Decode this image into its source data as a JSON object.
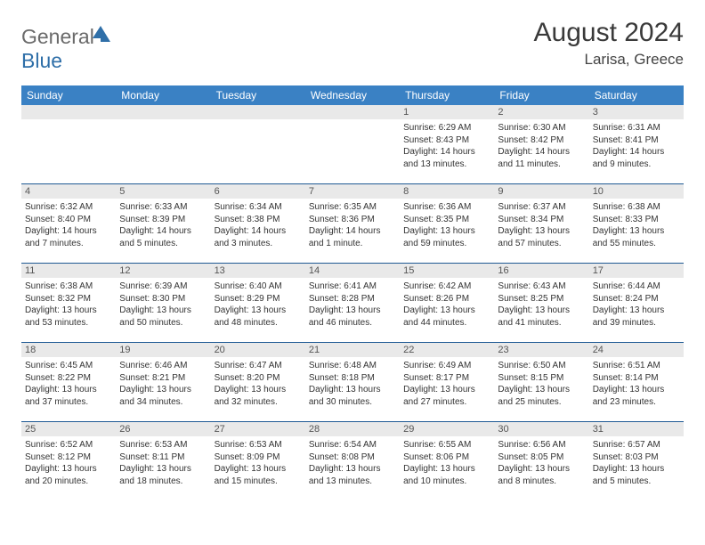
{
  "branding": {
    "logo_general": "General",
    "logo_blue": "Blue"
  },
  "header": {
    "title": "August 2024",
    "location": "Larisa, Greece"
  },
  "dayNames": [
    "Sunday",
    "Monday",
    "Tuesday",
    "Wednesday",
    "Thursday",
    "Friday",
    "Saturday"
  ],
  "styling": {
    "header_bg": "#3a81c4",
    "header_text": "#ffffff",
    "week_divider": "#1f5a94",
    "daynum_bg": "#e9e9e9",
    "page_bg": "#ffffff",
    "title_fontsize": 30,
    "location_fontsize": 17,
    "dayheader_fontsize": 12,
    "daynum_fontsize": 11,
    "cell_fontsize": 10
  },
  "weeks": [
    [
      {
        "empty": true
      },
      {
        "empty": true
      },
      {
        "empty": true
      },
      {
        "empty": true
      },
      {
        "num": "1",
        "sunrise": "6:29 AM",
        "sunset": "8:43 PM",
        "daylight": "14 hours and 13 minutes."
      },
      {
        "num": "2",
        "sunrise": "6:30 AM",
        "sunset": "8:42 PM",
        "daylight": "14 hours and 11 minutes."
      },
      {
        "num": "3",
        "sunrise": "6:31 AM",
        "sunset": "8:41 PM",
        "daylight": "14 hours and 9 minutes."
      }
    ],
    [
      {
        "num": "4",
        "sunrise": "6:32 AM",
        "sunset": "8:40 PM",
        "daylight": "14 hours and 7 minutes."
      },
      {
        "num": "5",
        "sunrise": "6:33 AM",
        "sunset": "8:39 PM",
        "daylight": "14 hours and 5 minutes."
      },
      {
        "num": "6",
        "sunrise": "6:34 AM",
        "sunset": "8:38 PM",
        "daylight": "14 hours and 3 minutes."
      },
      {
        "num": "7",
        "sunrise": "6:35 AM",
        "sunset": "8:36 PM",
        "daylight": "14 hours and 1 minute."
      },
      {
        "num": "8",
        "sunrise": "6:36 AM",
        "sunset": "8:35 PM",
        "daylight": "13 hours and 59 minutes."
      },
      {
        "num": "9",
        "sunrise": "6:37 AM",
        "sunset": "8:34 PM",
        "daylight": "13 hours and 57 minutes."
      },
      {
        "num": "10",
        "sunrise": "6:38 AM",
        "sunset": "8:33 PM",
        "daylight": "13 hours and 55 minutes."
      }
    ],
    [
      {
        "num": "11",
        "sunrise": "6:38 AM",
        "sunset": "8:32 PM",
        "daylight": "13 hours and 53 minutes."
      },
      {
        "num": "12",
        "sunrise": "6:39 AM",
        "sunset": "8:30 PM",
        "daylight": "13 hours and 50 minutes."
      },
      {
        "num": "13",
        "sunrise": "6:40 AM",
        "sunset": "8:29 PM",
        "daylight": "13 hours and 48 minutes."
      },
      {
        "num": "14",
        "sunrise": "6:41 AM",
        "sunset": "8:28 PM",
        "daylight": "13 hours and 46 minutes."
      },
      {
        "num": "15",
        "sunrise": "6:42 AM",
        "sunset": "8:26 PM",
        "daylight": "13 hours and 44 minutes."
      },
      {
        "num": "16",
        "sunrise": "6:43 AM",
        "sunset": "8:25 PM",
        "daylight": "13 hours and 41 minutes."
      },
      {
        "num": "17",
        "sunrise": "6:44 AM",
        "sunset": "8:24 PM",
        "daylight": "13 hours and 39 minutes."
      }
    ],
    [
      {
        "num": "18",
        "sunrise": "6:45 AM",
        "sunset": "8:22 PM",
        "daylight": "13 hours and 37 minutes."
      },
      {
        "num": "19",
        "sunrise": "6:46 AM",
        "sunset": "8:21 PM",
        "daylight": "13 hours and 34 minutes."
      },
      {
        "num": "20",
        "sunrise": "6:47 AM",
        "sunset": "8:20 PM",
        "daylight": "13 hours and 32 minutes."
      },
      {
        "num": "21",
        "sunrise": "6:48 AM",
        "sunset": "8:18 PM",
        "daylight": "13 hours and 30 minutes."
      },
      {
        "num": "22",
        "sunrise": "6:49 AM",
        "sunset": "8:17 PM",
        "daylight": "13 hours and 27 minutes."
      },
      {
        "num": "23",
        "sunrise": "6:50 AM",
        "sunset": "8:15 PM",
        "daylight": "13 hours and 25 minutes."
      },
      {
        "num": "24",
        "sunrise": "6:51 AM",
        "sunset": "8:14 PM",
        "daylight": "13 hours and 23 minutes."
      }
    ],
    [
      {
        "num": "25",
        "sunrise": "6:52 AM",
        "sunset": "8:12 PM",
        "daylight": "13 hours and 20 minutes."
      },
      {
        "num": "26",
        "sunrise": "6:53 AM",
        "sunset": "8:11 PM",
        "daylight": "13 hours and 18 minutes."
      },
      {
        "num": "27",
        "sunrise": "6:53 AM",
        "sunset": "8:09 PM",
        "daylight": "13 hours and 15 minutes."
      },
      {
        "num": "28",
        "sunrise": "6:54 AM",
        "sunset": "8:08 PM",
        "daylight": "13 hours and 13 minutes."
      },
      {
        "num": "29",
        "sunrise": "6:55 AM",
        "sunset": "8:06 PM",
        "daylight": "13 hours and 10 minutes."
      },
      {
        "num": "30",
        "sunrise": "6:56 AM",
        "sunset": "8:05 PM",
        "daylight": "13 hours and 8 minutes."
      },
      {
        "num": "31",
        "sunrise": "6:57 AM",
        "sunset": "8:03 PM",
        "daylight": "13 hours and 5 minutes."
      }
    ]
  ],
  "labels": {
    "sunrise": "Sunrise:",
    "sunset": "Sunset:",
    "daylight": "Daylight:"
  }
}
